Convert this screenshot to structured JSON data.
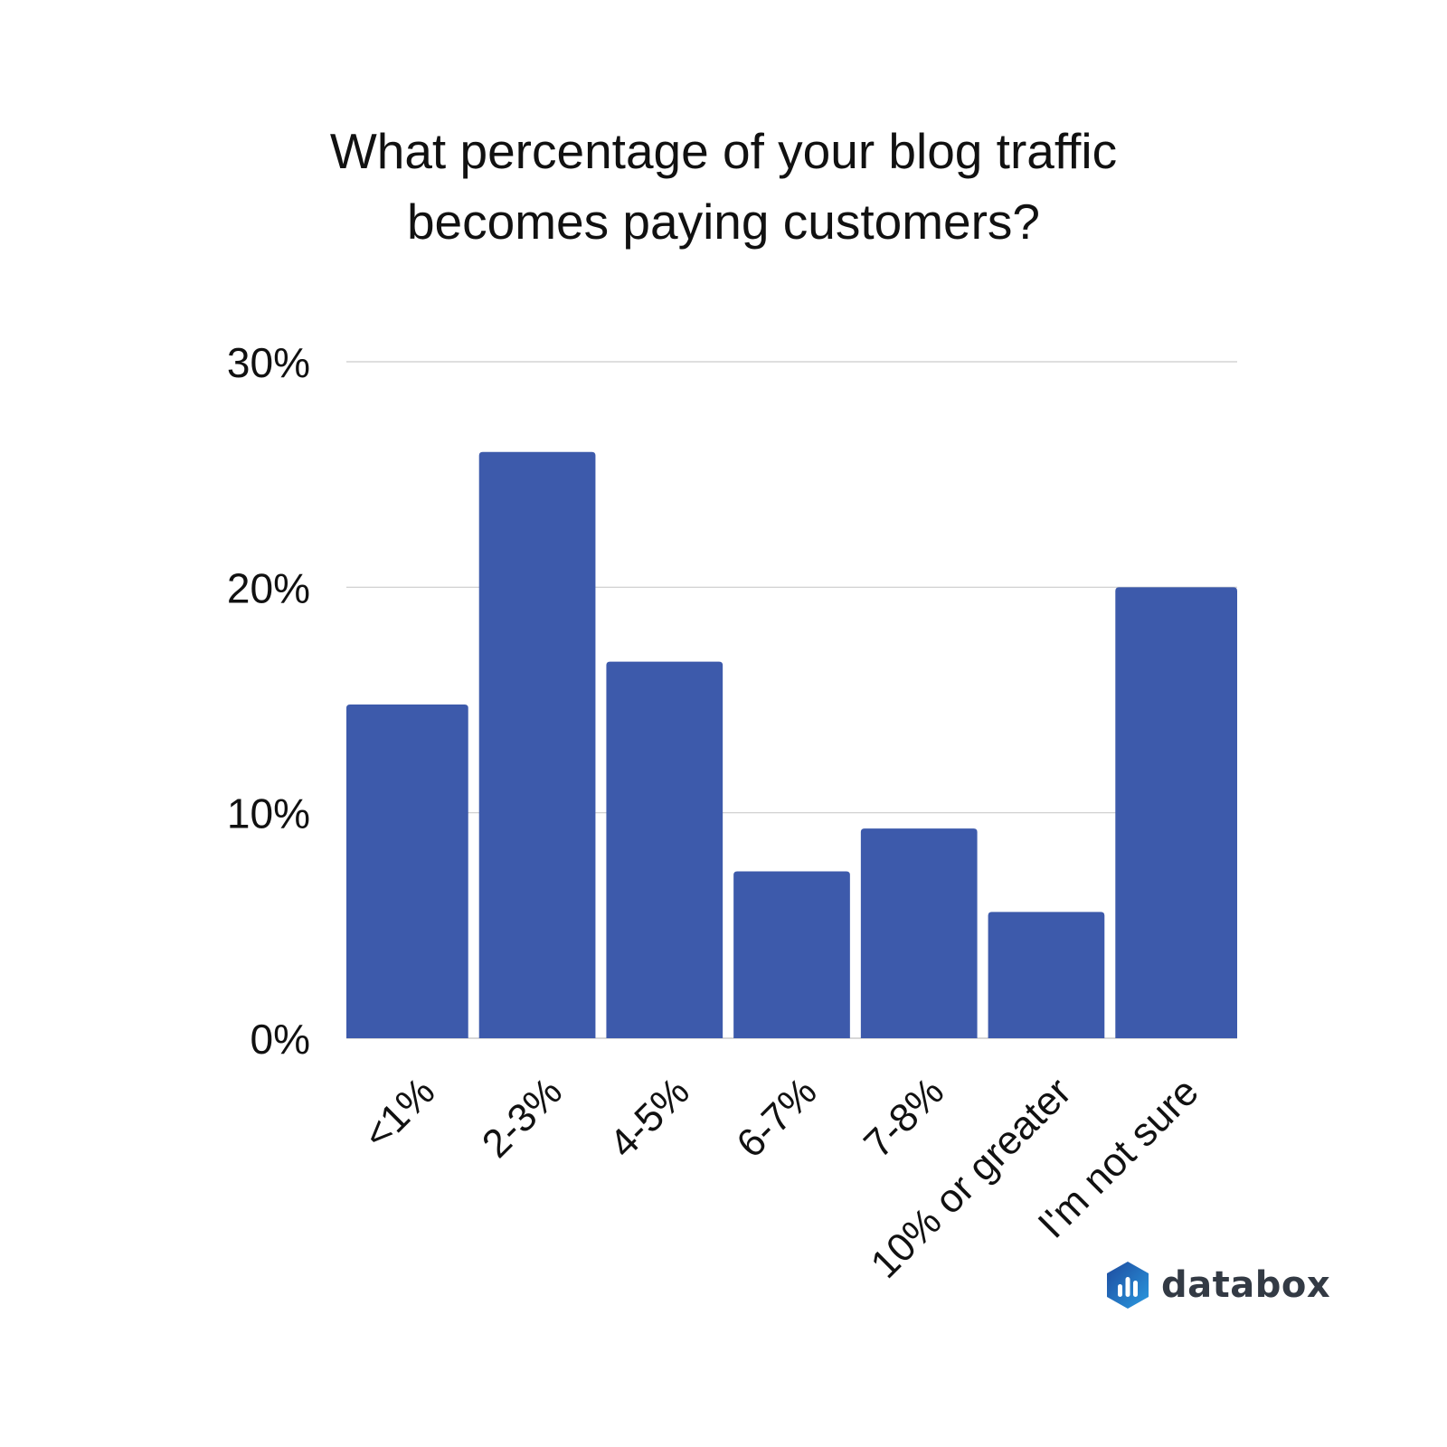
{
  "chart_data": {
    "type": "bar",
    "title_lines": [
      "What percentage of your blog traffic",
      "becomes paying customers?"
    ],
    "categories": [
      "<1%",
      "2-3%",
      "4-5%",
      "6-7%",
      "7-8%",
      "10% or greater",
      "I'm not sure"
    ],
    "values": [
      14.8,
      26.0,
      16.7,
      7.4,
      9.3,
      5.6,
      20.0
    ],
    "ylim": [
      0,
      30
    ],
    "yticks": [
      0,
      10,
      20,
      30
    ],
    "ytick_labels": [
      "0%",
      "10%",
      "20%",
      "30%"
    ],
    "xlabel": "",
    "ylabel": "",
    "grid": true,
    "bar_color": "#3d5aab",
    "grid_color": "#cccccc"
  },
  "brand": {
    "name": "databox",
    "colors": [
      "#1e4a9e",
      "#2a86d1"
    ]
  }
}
